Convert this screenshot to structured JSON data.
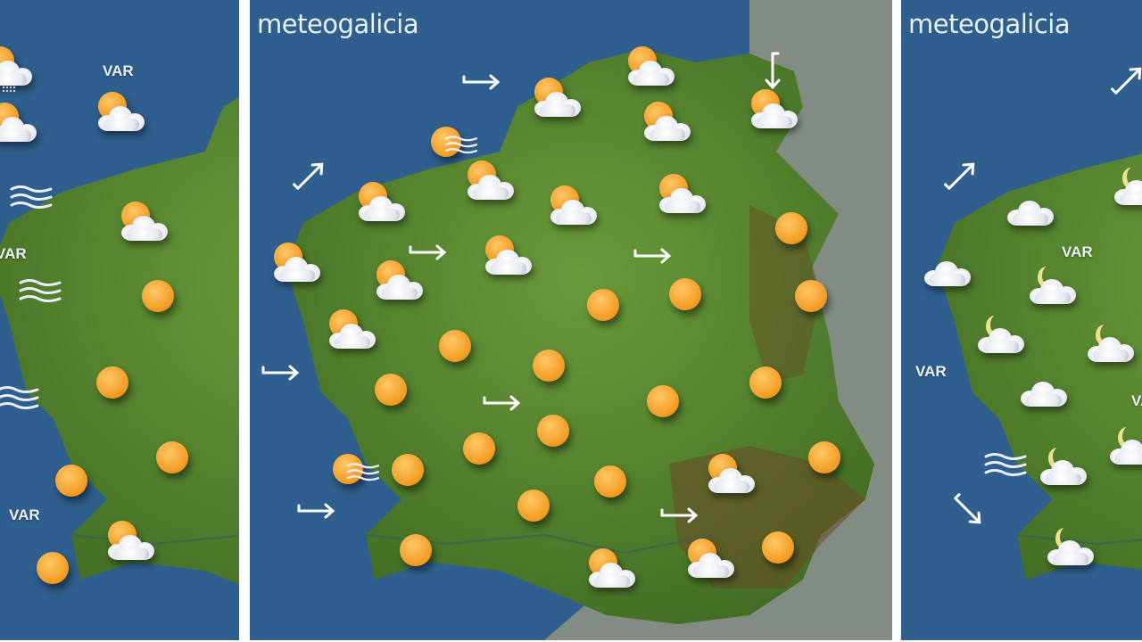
{
  "brand": {
    "logo_text": "meteogalicia"
  },
  "colors": {
    "sea": "#2f5f8e",
    "land": "#4f7f2c",
    "mountains": "#6b4a26",
    "outside_land": "#8a8f80",
    "sun": "#f39a1f",
    "cloud": "#eef0f5"
  },
  "panels": [
    {
      "labels": [
        "VAR",
        "VAR",
        "VAR"
      ],
      "icons": [
        "sun-cloud-rain-icon",
        "sun-cloud-icon",
        "sun-cloud-icon",
        "sun-cloud-icon",
        "sun-cloud-icon",
        "wind-icon",
        "wind-icon",
        "wind-icon",
        "sun-icon",
        "sun-icon",
        "sun-icon",
        "sun-icon",
        "sun-icon"
      ]
    },
    {
      "logo": "meteogalicia",
      "labels": [],
      "icons": [
        "sun-cloud-icon",
        "sun-cloud-icon",
        "sun-cloud-icon",
        "sun-cloud-icon",
        "sun-cloud-icon",
        "sun-cloud-icon",
        "sun-cloud-icon",
        "sun-cloud-icon",
        "sun-cloud-icon",
        "sun-cloud-icon",
        "sun-cloud-icon",
        "sun-cloud-icon",
        "sun-cloud-icon",
        "sun-cloud-icon",
        "sun-cloud-icon",
        "sun-icon",
        "sun-icon",
        "sun-icon",
        "sun-icon",
        "sun-icon",
        "sun-icon",
        "sun-icon",
        "sun-icon",
        "sun-icon",
        "sun-icon",
        "sun-icon",
        "sun-icon",
        "sun-icon",
        "sun-icon",
        "sun-icon",
        "sun-icon",
        "sun-icon",
        "sun-wind-icon",
        "sun-wind-icon",
        "arrow-right-icon",
        "arrow-down-icon",
        "arrow-up-right-icon",
        "arrow-right-icon",
        "arrow-right-icon",
        "arrow-right-icon",
        "arrow-right-icon",
        "arrow-right-icon",
        "arrow-right-icon"
      ]
    },
    {
      "logo": "meteogalicia",
      "labels": [
        "VAR",
        "VAR",
        "VAR"
      ],
      "icons": [
        "arrow-up-right-icon",
        "arrow-up-right-icon",
        "arrow-down-right-icon",
        "cloud-icon",
        "cloud-icon",
        "moon-cloud-icon",
        "moon-cloud-icon",
        "moon-cloud-icon",
        "moon-cloud-icon",
        "cloud-icon",
        "moon-cloud-icon",
        "moon-cloud-icon",
        "moon-cloud-icon",
        "wind-icon"
      ]
    }
  ]
}
